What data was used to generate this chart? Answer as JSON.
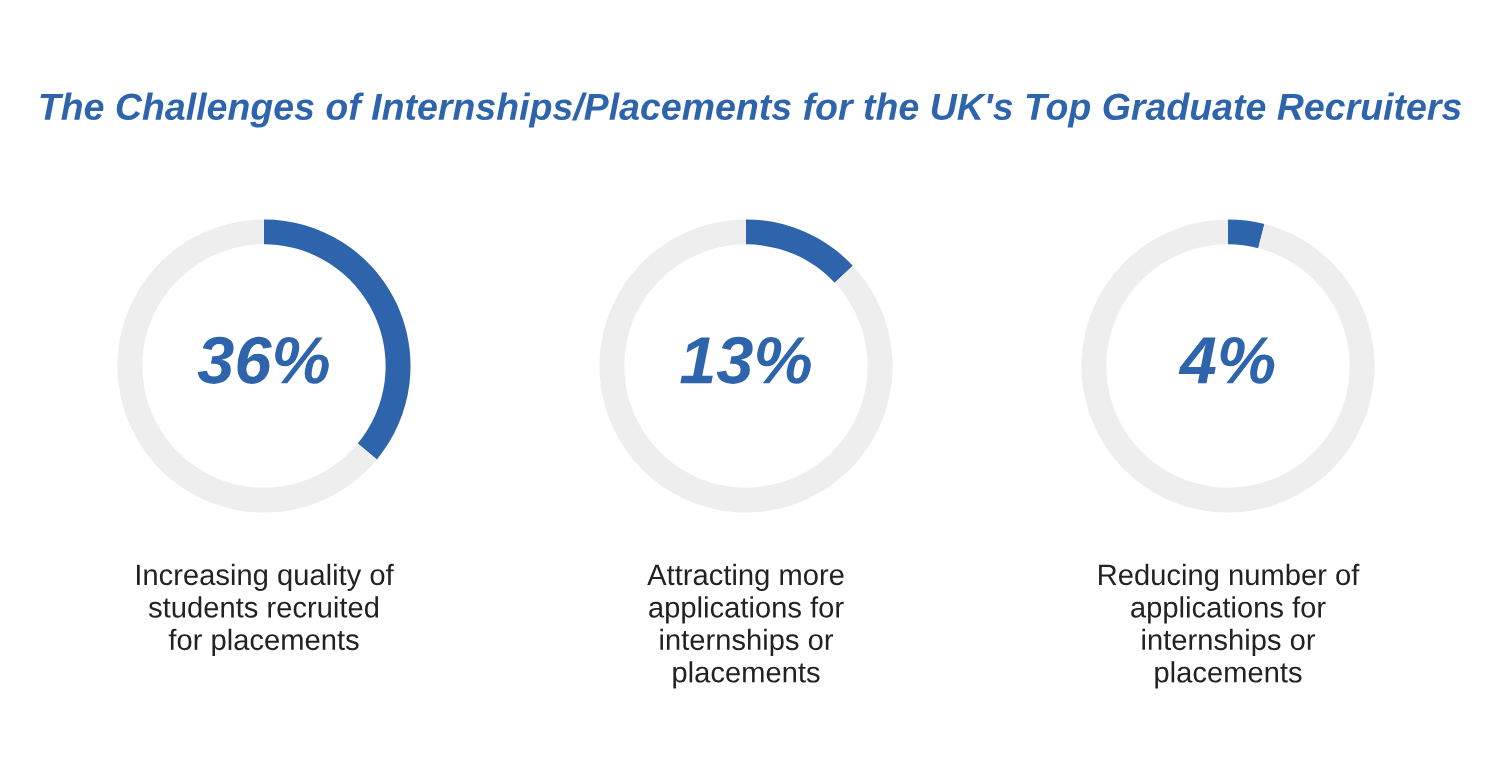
{
  "chart_data": [
    {
      "type": "donut",
      "title": "The Challenges of Internships/Placements for the UK's Top Graduate Recruiters",
      "xlabel": "Increasing quality of\nstudents recruited\nfor placements",
      "categories": [
        null,
        null
      ],
      "values": [
        36,
        64
      ],
      "colors": [
        "#2e64ab",
        "#eeeeee"
      ],
      "value_labels": [
        "36%",
        null
      ]
    },
    {
      "type": "donut",
      "xlabel": "Attracting more\napplications for\ninternships or\nplacements",
      "categories": [
        null,
        null
      ],
      "values": [
        13,
        87
      ],
      "colors": [
        "#2e64ab",
        "#eeeeee"
      ],
      "value_labels": [
        "13%",
        null
      ]
    },
    {
      "type": "donut",
      "xlabel": "Reducing number of\napplications for\ninternships or\nplacements",
      "categories": [
        null,
        null
      ],
      "values": [
        4,
        96
      ],
      "colors": [
        "#2e64ab",
        "#eeeeee"
      ],
      "value_labels": [
        "4%",
        null
      ]
    }
  ]
}
